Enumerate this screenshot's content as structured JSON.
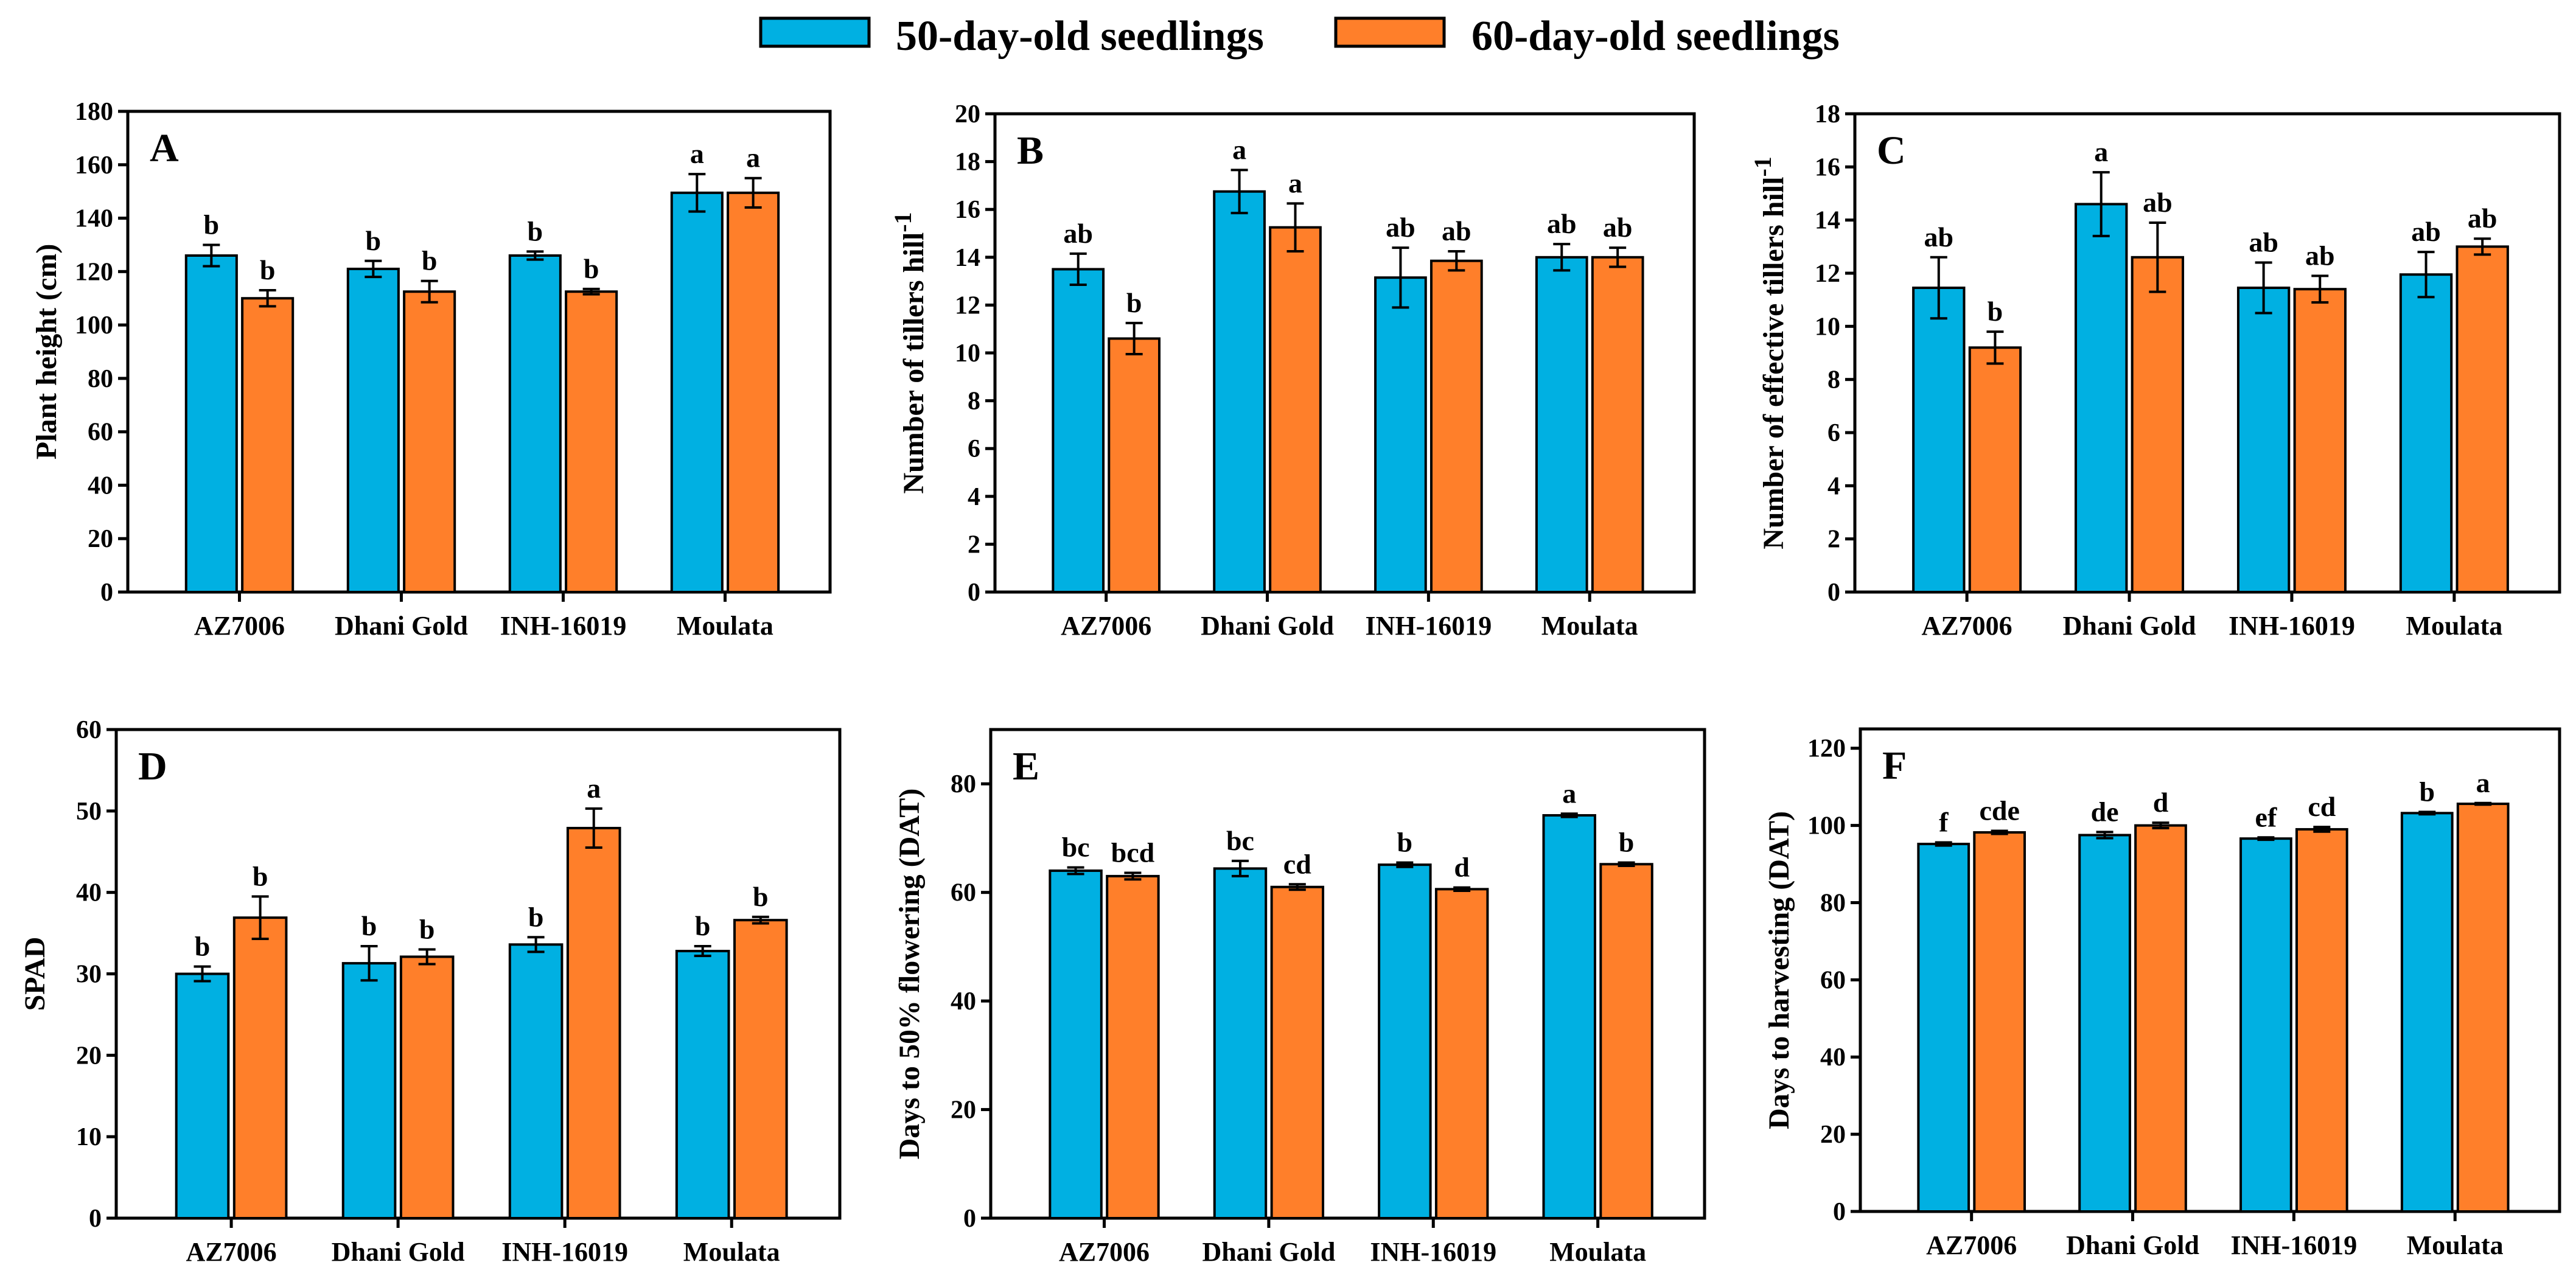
{
  "legend": {
    "items": [
      {
        "label": "50-day-old seedlings",
        "color": "#00b0e2"
      },
      {
        "label": "60-day-old seedlings",
        "color": "#ff7f2a"
      }
    ]
  },
  "chart_data": [
    {
      "type": "bar",
      "panel": "A",
      "title": "",
      "xlabel": "",
      "ylabel": "Plant height (cm)",
      "ylabel_sup": "",
      "ylim": [
        0,
        180
      ],
      "yticks": [
        0,
        20,
        40,
        60,
        80,
        100,
        120,
        140,
        160,
        180
      ],
      "categories": [
        "AZ7006",
        "Dhani Gold",
        "INH-16019",
        "Moulata"
      ],
      "series": [
        {
          "name": "50-day-old seedlings",
          "values": [
            126,
            121,
            126,
            149.5
          ],
          "errors": [
            4,
            3,
            1.5,
            7
          ],
          "labels": [
            "b",
            "b",
            "b",
            "a"
          ]
        },
        {
          "name": "60-day-old seedlings",
          "values": [
            110,
            112.5,
            112.5,
            149.5
          ],
          "errors": [
            3,
            4,
            1,
            5.5
          ],
          "labels": [
            "b",
            "b",
            "b",
            "a"
          ]
        }
      ],
      "grid": false,
      "legend": "top-center"
    },
    {
      "type": "bar",
      "panel": "B",
      "title": "",
      "xlabel": "",
      "ylabel": "Number of tillers hill",
      "ylabel_sup": "-1",
      "ylim": [
        0,
        20
      ],
      "yticks": [
        0,
        2,
        4,
        6,
        8,
        10,
        12,
        14,
        16,
        18,
        20
      ],
      "categories": [
        "AZ7006",
        "Dhani Gold",
        "INH-16019",
        "Moulata"
      ],
      "series": [
        {
          "name": "50-day-old seedlings",
          "values": [
            13.5,
            16.75,
            13.15,
            14.0
          ],
          "errors": [
            0.65,
            0.9,
            1.25,
            0.55
          ],
          "labels": [
            "ab",
            "a",
            "ab",
            "ab"
          ]
        },
        {
          "name": "60-day-old seedlings",
          "values": [
            10.6,
            15.25,
            13.85,
            14.0
          ],
          "errors": [
            0.65,
            1.0,
            0.4,
            0.4
          ],
          "labels": [
            "b",
            "a",
            "ab",
            "ab"
          ]
        }
      ],
      "grid": false,
      "legend": "top-center"
    },
    {
      "type": "bar",
      "panel": "C",
      "title": "",
      "xlabel": "",
      "ylabel": "Number of effective tillers hill",
      "ylabel_sup": "-1",
      "ylim": [
        0,
        18
      ],
      "yticks": [
        0,
        2,
        4,
        6,
        8,
        10,
        12,
        14,
        16,
        18
      ],
      "categories": [
        "AZ7006",
        "Dhani Gold",
        "INH-16019",
        "Moulata"
      ],
      "series": [
        {
          "name": "50-day-old seedlings",
          "values": [
            11.45,
            14.6,
            11.45,
            11.95
          ],
          "errors": [
            1.15,
            1.2,
            0.95,
            0.85
          ],
          "labels": [
            "ab",
            "a",
            "ab",
            "ab"
          ]
        },
        {
          "name": "60-day-old seedlings",
          "values": [
            9.2,
            12.6,
            11.4,
            13.0
          ],
          "errors": [
            0.6,
            1.3,
            0.5,
            0.3
          ],
          "labels": [
            "b",
            "ab",
            "ab",
            "ab"
          ]
        }
      ],
      "grid": false,
      "legend": "top-center"
    },
    {
      "type": "bar",
      "panel": "D",
      "title": "",
      "xlabel": "",
      "ylabel": "SPAD",
      "ylabel_sup": "",
      "ylim": [
        0,
        60
      ],
      "yticks": [
        0,
        10,
        20,
        30,
        40,
        50,
        60
      ],
      "categories": [
        "AZ7006",
        "Dhani Gold",
        "INH-16019",
        "Moulata"
      ],
      "series": [
        {
          "name": "50-day-old seedlings",
          "values": [
            30.0,
            31.3,
            33.6,
            32.8
          ],
          "errors": [
            0.9,
            2.1,
            0.9,
            0.6
          ],
          "labels": [
            "b",
            "b",
            "b",
            "b"
          ]
        },
        {
          "name": "60-day-old seedlings",
          "values": [
            36.9,
            32.1,
            47.9,
            36.6
          ],
          "errors": [
            2.6,
            0.9,
            2.4,
            0.4
          ],
          "labels": [
            "b",
            "b",
            "a",
            "b"
          ]
        }
      ],
      "grid": false,
      "legend": "top-center"
    },
    {
      "type": "bar",
      "panel": "E",
      "title": "",
      "xlabel": "",
      "ylabel": "Days to 50% flowering (DAT)",
      "ylabel_sup": "",
      "ylim": [
        0,
        90
      ],
      "yticks": [
        0,
        20,
        40,
        60,
        80
      ],
      "categories": [
        "AZ7006",
        "Dhani Gold",
        "INH-16019",
        "Moulata"
      ],
      "series": [
        {
          "name": "50-day-old seedlings",
          "values": [
            64.0,
            64.4,
            65.1,
            74.2
          ],
          "errors": [
            0.6,
            1.4,
            0.4,
            0.3
          ],
          "labels": [
            "bc",
            "bc",
            "b",
            "a"
          ]
        },
        {
          "name": "60-day-old seedlings",
          "values": [
            63.0,
            61.0,
            60.6,
            65.2
          ],
          "errors": [
            0.6,
            0.5,
            0.3,
            0.3
          ],
          "labels": [
            "bcd",
            "cd",
            "d",
            "b"
          ]
        }
      ],
      "grid": false,
      "legend": "top-center"
    },
    {
      "type": "bar",
      "panel": "F",
      "title": "",
      "xlabel": "",
      "ylabel": "Days to harvesting (DAT)",
      "ylabel_sup": "",
      "ylim": [
        0,
        125
      ],
      "yticks": [
        0,
        20,
        40,
        60,
        80,
        100,
        120
      ],
      "categories": [
        "AZ7006",
        "Dhani Gold",
        "INH-16019",
        "Moulata"
      ],
      "series": [
        {
          "name": "50-day-old seedlings",
          "values": [
            95.2,
            97.5,
            96.6,
            103.2
          ],
          "errors": [
            0.4,
            0.8,
            0.3,
            0.3
          ],
          "labels": [
            "f",
            "de",
            "ef",
            "b"
          ]
        },
        {
          "name": "60-day-old seedlings",
          "values": [
            98.2,
            100.0,
            99.0,
            105.6
          ],
          "errors": [
            0.4,
            0.7,
            0.6,
            0.2
          ],
          "labels": [
            "cde",
            "d",
            "cd",
            "a"
          ]
        }
      ],
      "grid": false,
      "legend": "top-center"
    }
  ]
}
